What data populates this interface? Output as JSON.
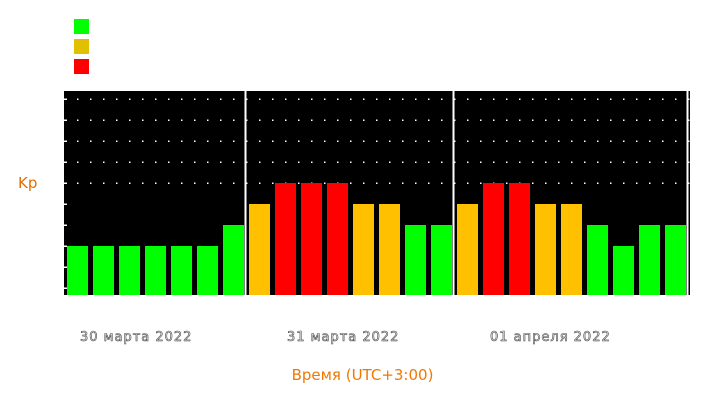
{
  "chart_data": {
    "type": "bar",
    "title": "",
    "ylabel": "Kp",
    "xlabel": "Время (UTC+3:00)",
    "ylim": [
      0,
      9
    ],
    "grid": true,
    "days": [
      "30 марта 2022",
      "31 марта 2022",
      "01 апреля 2022"
    ],
    "day_bar_counts": [
      7,
      8,
      9
    ],
    "values": [
      2,
      2,
      2,
      2,
      2,
      2,
      3,
      4,
      5,
      5,
      5,
      4,
      4,
      3,
      3,
      4,
      5,
      5,
      4,
      4,
      3,
      2,
      3,
      3
    ],
    "legend": [
      {
        "color": "#00ff00"
      },
      {
        "color": "#e0c000"
      },
      {
        "color": "#ff0000"
      }
    ],
    "colors": {
      "low": "#00ff00",
      "mid": "#ffc000",
      "high": "#ff0000"
    }
  }
}
